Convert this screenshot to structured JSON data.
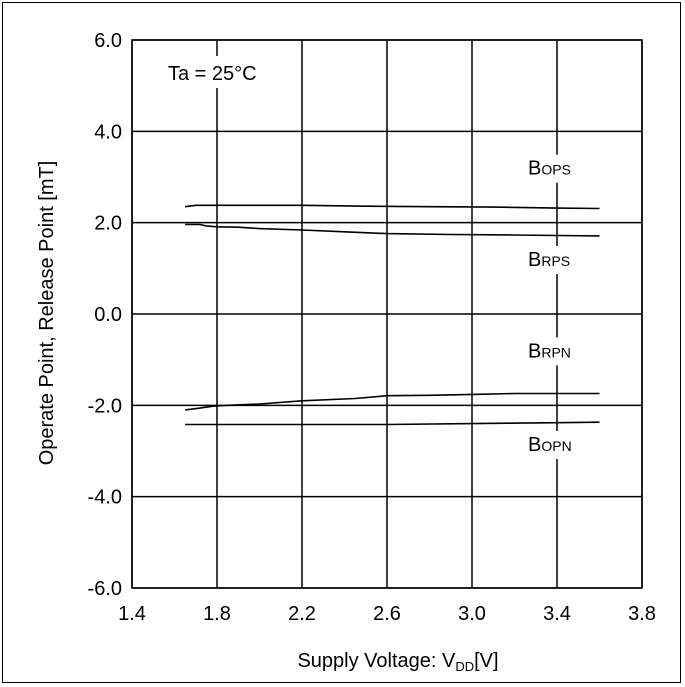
{
  "chart_data": {
    "type": "line",
    "xlabel": "Supply Voltage: V",
    "xlabel_sub": "DD",
    "xlabel_tail": "[V]",
    "ylabel": "Operate Point, Release Point [mT]",
    "annotation": "Ta = 25°C",
    "xlim": [
      1.4,
      3.8
    ],
    "ylim": [
      -6.0,
      6.0
    ],
    "xticks": [
      "1.4",
      "1.8",
      "2.2",
      "2.6",
      "3.0",
      "3.4",
      "3.8"
    ],
    "yticks": [
      "6.0",
      "4.0",
      "2.0",
      "0.0",
      "-2.0",
      "-4.0",
      "-6.0"
    ],
    "grid": true,
    "series": [
      {
        "name": "B",
        "name_sub": "OPS",
        "x": [
          1.65,
          1.7,
          1.8,
          2.0,
          2.2,
          2.5,
          2.8,
          3.1,
          3.4,
          3.6
        ],
        "y": [
          2.35,
          2.38,
          2.38,
          2.38,
          2.38,
          2.36,
          2.35,
          2.34,
          2.32,
          2.31
        ],
        "label_at": [
          3.4,
          3.05
        ]
      },
      {
        "name": "B",
        "name_sub": "RPS",
        "x": [
          1.65,
          1.72,
          1.75,
          1.8,
          1.9,
          2.0,
          2.2,
          2.4,
          2.6,
          2.9,
          3.2,
          3.4,
          3.6
        ],
        "y": [
          1.96,
          1.96,
          1.93,
          1.91,
          1.9,
          1.87,
          1.84,
          1.8,
          1.76,
          1.74,
          1.73,
          1.72,
          1.71
        ],
        "label_at": [
          3.4,
          1.05
        ]
      },
      {
        "name": "B",
        "name_sub": "RPN",
        "x": [
          1.65,
          1.72,
          1.78,
          1.85,
          2.0,
          2.2,
          2.45,
          2.6,
          2.8,
          3.0,
          3.2,
          3.4,
          3.6
        ],
        "y": [
          -2.1,
          -2.06,
          -2.02,
          -2.0,
          -1.97,
          -1.9,
          -1.85,
          -1.79,
          -1.78,
          -1.76,
          -1.74,
          -1.74,
          -1.74
        ],
        "label_at": [
          3.4,
          -0.95
        ]
      },
      {
        "name": "B",
        "name_sub": "OPN",
        "x": [
          1.65,
          1.9,
          2.2,
          2.6,
          3.0,
          3.4,
          3.6
        ],
        "y": [
          -2.42,
          -2.42,
          -2.42,
          -2.42,
          -2.4,
          -2.38,
          -2.37
        ],
        "label_at": [
          3.4,
          -3.0
        ]
      }
    ]
  }
}
